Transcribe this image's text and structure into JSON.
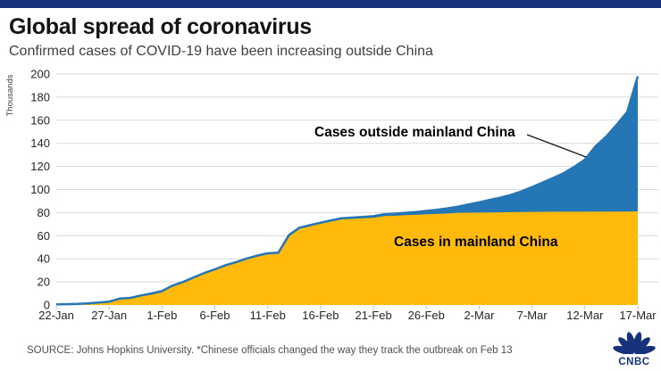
{
  "page": {
    "title": "Global spread of coronavirus",
    "subtitle": "Confirmed cases of COVID-19 have been increasing outside China",
    "source_note": "SOURCE: Johns Hopkins University. *Chinese officials changed the way they track the outbreak on Feb 13",
    "logo_text": "CNBC"
  },
  "colors": {
    "accent_bar": "#16327B",
    "mainland_china_area": "#FFBA0B",
    "outside_china_area": "#2576B4",
    "gridline": "#D9D9D9",
    "tick": "#BFBFBF",
    "axis_text": "#262626",
    "logo_navy": "#16327B"
  },
  "chart_data": {
    "type": "area",
    "stacked": true,
    "title": "Global spread of coronavirus",
    "subtitle": "Confirmed cases of COVID-19 have been increasing outside China",
    "xlabel": "",
    "ylabel": "Thousands",
    "ylim": [
      0,
      200
    ],
    "yticks": [
      0,
      20,
      40,
      60,
      80,
      100,
      120,
      140,
      160,
      180,
      200
    ],
    "xtick_labels": [
      "22-Jan",
      "27-Jan",
      "1-Feb",
      "6-Feb",
      "11-Feb",
      "16-Feb",
      "21-Feb",
      "26-Feb",
      "2-Mar",
      "7-Mar",
      "12-Mar",
      "17-Mar"
    ],
    "grid": true,
    "legend_position": "inline-annotations",
    "x": [
      "22-Jan",
      "23-Jan",
      "24-Jan",
      "25-Jan",
      "26-Jan",
      "27-Jan",
      "28-Jan",
      "29-Jan",
      "30-Jan",
      "31-Jan",
      "1-Feb",
      "2-Feb",
      "3-Feb",
      "4-Feb",
      "5-Feb",
      "6-Feb",
      "7-Feb",
      "8-Feb",
      "9-Feb",
      "10-Feb",
      "11-Feb",
      "12-Feb",
      "13-Feb",
      "14-Feb",
      "15-Feb",
      "16-Feb",
      "17-Feb",
      "18-Feb",
      "19-Feb",
      "20-Feb",
      "21-Feb",
      "22-Feb",
      "23-Feb",
      "24-Feb",
      "25-Feb",
      "26-Feb",
      "27-Feb",
      "28-Feb",
      "29-Feb",
      "1-Mar",
      "2-Mar",
      "3-Mar",
      "4-Mar",
      "5-Mar",
      "6-Mar",
      "7-Mar",
      "8-Mar",
      "9-Mar",
      "10-Mar",
      "11-Mar",
      "12-Mar",
      "13-Mar",
      "14-Mar",
      "15-Mar",
      "16-Mar",
      "17-Mar"
    ],
    "units": "thousands of confirmed cases",
    "series": [
      {
        "name": "Cases in mainland China",
        "color": "#FFBA0B",
        "values": [
          0.55,
          0.65,
          0.92,
          1.41,
          2.06,
          2.88,
          5.51,
          6.09,
          8.12,
          9.78,
          11.89,
          16.63,
          19.72,
          23.71,
          27.44,
          30.59,
          34.11,
          36.81,
          39.83,
          42.35,
          44.39,
          44.76,
          59.89,
          66.36,
          68.35,
          70.46,
          72.44,
          74.19,
          74.62,
          75.08,
          75.55,
          77.0,
          77.24,
          77.75,
          78.06,
          78.5,
          78.82,
          79.25,
          79.82,
          79.92,
          80.03,
          80.15,
          80.27,
          80.41,
          80.57,
          80.65,
          80.7,
          80.75,
          80.78,
          80.79,
          80.81,
          80.82,
          80.84,
          80.86,
          80.88,
          81.06
        ]
      },
      {
        "name": "Cases outside mainland China",
        "color": "#2576B4",
        "values": [
          0.01,
          0.02,
          0.03,
          0.04,
          0.06,
          0.07,
          0.08,
          0.09,
          0.11,
          0.15,
          0.16,
          0.18,
          0.19,
          0.24,
          0.26,
          0.28,
          0.32,
          0.34,
          0.38,
          0.4,
          0.43,
          0.46,
          0.56,
          0.6,
          0.78,
          0.79,
          0.88,
          0.98,
          1.06,
          1.15,
          1.37,
          1.6,
          1.8,
          2.1,
          2.46,
          2.93,
          3.66,
          4.45,
          5.36,
          7.21,
          8.82,
          10.9,
          12.7,
          14.9,
          17.9,
          21.4,
          25.4,
          29.3,
          33.4,
          38.9,
          45.1,
          56.6,
          64.9,
          75.1,
          86.4,
          116.9
        ]
      }
    ],
    "annotations": [
      {
        "text": "Cases outside mainland China",
        "points_to": "blue stacked area near 12-Mar"
      },
      {
        "text": "Cases in mainland China",
        "points_to": "yellow area"
      }
    ]
  }
}
